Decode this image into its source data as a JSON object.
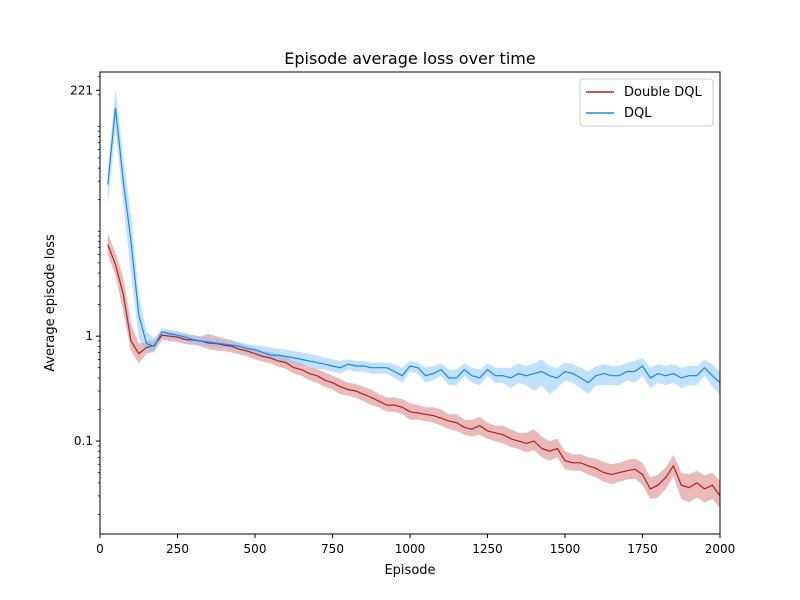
{
  "chart_data": {
    "type": "line",
    "title": "Episode average loss over time",
    "xlabel": "Episode",
    "ylabel": "Average episode loss",
    "xlim": [
      0,
      2000
    ],
    "ylim": [
      0.013,
      330
    ],
    "yscale": "log",
    "xticks": [
      0,
      250,
      500,
      750,
      1000,
      1250,
      1500,
      1750,
      2000
    ],
    "yticks": [
      0.1,
      1,
      221
    ],
    "ytick_labels": [
      "0.1",
      "1",
      "221"
    ],
    "grid": false,
    "legend_position": "top-right",
    "x": [
      25,
      50,
      75,
      100,
      125,
      150,
      175,
      200,
      225,
      250,
      275,
      300,
      325,
      350,
      375,
      400,
      425,
      450,
      475,
      500,
      525,
      550,
      575,
      600,
      625,
      650,
      675,
      700,
      725,
      750,
      775,
      800,
      825,
      850,
      875,
      900,
      925,
      950,
      975,
      1000,
      1025,
      1050,
      1075,
      1100,
      1125,
      1150,
      1175,
      1200,
      1225,
      1250,
      1275,
      1300,
      1325,
      1350,
      1375,
      1400,
      1425,
      1450,
      1475,
      1500,
      1525,
      1550,
      1575,
      1600,
      1625,
      1650,
      1675,
      1700,
      1725,
      1750,
      1775,
      1800,
      1825,
      1850,
      1875,
      1900,
      1925,
      1950,
      1975,
      2000
    ],
    "series": [
      {
        "name": "Double DQL",
        "color": "#b22222",
        "band_color": "#d98080",
        "values": [
          7.5,
          4.8,
          2.5,
          0.9,
          0.68,
          0.78,
          0.82,
          1.02,
          1.0,
          0.98,
          0.93,
          0.92,
          0.9,
          0.86,
          0.85,
          0.82,
          0.8,
          0.75,
          0.72,
          0.68,
          0.64,
          0.62,
          0.58,
          0.56,
          0.5,
          0.48,
          0.44,
          0.42,
          0.38,
          0.36,
          0.33,
          0.31,
          0.3,
          0.28,
          0.26,
          0.24,
          0.22,
          0.22,
          0.21,
          0.19,
          0.185,
          0.18,
          0.175,
          0.165,
          0.155,
          0.15,
          0.135,
          0.13,
          0.14,
          0.125,
          0.12,
          0.115,
          0.105,
          0.1,
          0.095,
          0.1,
          0.085,
          0.08,
          0.085,
          0.065,
          0.062,
          0.062,
          0.058,
          0.055,
          0.05,
          0.048,
          0.05,
          0.052,
          0.054,
          0.048,
          0.035,
          0.038,
          0.045,
          0.058,
          0.038,
          0.036,
          0.04,
          0.035,
          0.038,
          0.03
        ],
        "upper": [
          9.5,
          6.2,
          3.6,
          1.3,
          0.85,
          0.9,
          0.92,
          1.12,
          1.1,
          1.08,
          1.03,
          1.02,
          1.0,
          1.05,
          1.0,
          0.95,
          0.92,
          0.85,
          0.81,
          0.77,
          0.72,
          0.7,
          0.66,
          0.64,
          0.58,
          0.55,
          0.51,
          0.49,
          0.45,
          0.42,
          0.39,
          0.36,
          0.35,
          0.33,
          0.31,
          0.28,
          0.26,
          0.26,
          0.25,
          0.23,
          0.22,
          0.21,
          0.21,
          0.2,
          0.18,
          0.18,
          0.16,
          0.16,
          0.17,
          0.15,
          0.14,
          0.14,
          0.13,
          0.12,
          0.12,
          0.13,
          0.11,
          0.1,
          0.105,
          0.08,
          0.075,
          0.075,
          0.07,
          0.068,
          0.063,
          0.06,
          0.062,
          0.066,
          0.068,
          0.062,
          0.045,
          0.048,
          0.056,
          0.074,
          0.05,
          0.048,
          0.052,
          0.047,
          0.05,
          0.042
        ],
        "lower": [
          6.0,
          3.8,
          1.7,
          0.72,
          0.55,
          0.68,
          0.72,
          0.92,
          0.9,
          0.88,
          0.84,
          0.83,
          0.8,
          0.75,
          0.73,
          0.72,
          0.7,
          0.67,
          0.64,
          0.6,
          0.57,
          0.55,
          0.51,
          0.49,
          0.44,
          0.42,
          0.38,
          0.36,
          0.33,
          0.31,
          0.28,
          0.27,
          0.26,
          0.24,
          0.22,
          0.21,
          0.19,
          0.19,
          0.18,
          0.16,
          0.16,
          0.155,
          0.15,
          0.14,
          0.13,
          0.125,
          0.115,
          0.11,
          0.115,
          0.105,
          0.1,
          0.095,
          0.088,
          0.084,
          0.078,
          0.082,
          0.07,
          0.065,
          0.07,
          0.054,
          0.052,
          0.052,
          0.048,
          0.045,
          0.041,
          0.039,
          0.041,
          0.043,
          0.044,
          0.038,
          0.028,
          0.029,
          0.035,
          0.046,
          0.028,
          0.026,
          0.029,
          0.026,
          0.028,
          0.023
        ]
      },
      {
        "name": "DQL",
        "color": "#1e88e5",
        "band_color": "#8cc8ff",
        "values": [
          28,
          150,
          30,
          8,
          1.6,
          0.85,
          0.8,
          1.1,
          1.05,
          1.02,
          0.98,
          0.93,
          0.9,
          0.88,
          0.86,
          0.84,
          0.82,
          0.8,
          0.76,
          0.74,
          0.7,
          0.66,
          0.66,
          0.64,
          0.62,
          0.6,
          0.58,
          0.56,
          0.54,
          0.52,
          0.5,
          0.54,
          0.52,
          0.52,
          0.5,
          0.5,
          0.5,
          0.46,
          0.42,
          0.52,
          0.5,
          0.42,
          0.44,
          0.48,
          0.4,
          0.4,
          0.48,
          0.42,
          0.4,
          0.48,
          0.42,
          0.42,
          0.4,
          0.44,
          0.42,
          0.44,
          0.46,
          0.42,
          0.4,
          0.46,
          0.44,
          0.4,
          0.36,
          0.42,
          0.44,
          0.42,
          0.42,
          0.46,
          0.46,
          0.52,
          0.4,
          0.44,
          0.42,
          0.44,
          0.4,
          0.42,
          0.42,
          0.5,
          0.42,
          0.36
        ],
        "upper": [
          40,
          230,
          50,
          14,
          2.5,
          1.1,
          0.95,
          1.2,
          1.15,
          1.12,
          1.08,
          1.02,
          0.98,
          0.96,
          0.93,
          0.91,
          0.89,
          0.88,
          0.84,
          0.82,
          0.8,
          0.78,
          0.76,
          0.74,
          0.72,
          0.7,
          0.68,
          0.66,
          0.62,
          0.6,
          0.58,
          0.6,
          0.58,
          0.58,
          0.56,
          0.56,
          0.56,
          0.54,
          0.5,
          0.58,
          0.56,
          0.5,
          0.52,
          0.55,
          0.48,
          0.48,
          0.55,
          0.5,
          0.48,
          0.55,
          0.5,
          0.5,
          0.5,
          0.55,
          0.52,
          0.55,
          0.6,
          0.52,
          0.5,
          0.56,
          0.54,
          0.5,
          0.46,
          0.52,
          0.54,
          0.52,
          0.52,
          0.56,
          0.58,
          0.62,
          0.5,
          0.54,
          0.52,
          0.54,
          0.5,
          0.52,
          0.52,
          0.6,
          0.54,
          0.46
        ],
        "lower": [
          18,
          95,
          18,
          4,
          0.95,
          0.7,
          0.7,
          1.0,
          0.95,
          0.93,
          0.9,
          0.85,
          0.82,
          0.8,
          0.79,
          0.77,
          0.75,
          0.73,
          0.69,
          0.67,
          0.63,
          0.59,
          0.59,
          0.57,
          0.55,
          0.53,
          0.51,
          0.49,
          0.48,
          0.46,
          0.44,
          0.48,
          0.46,
          0.46,
          0.44,
          0.44,
          0.44,
          0.4,
          0.36,
          0.46,
          0.44,
          0.36,
          0.38,
          0.42,
          0.34,
          0.34,
          0.42,
          0.36,
          0.34,
          0.42,
          0.36,
          0.36,
          0.32,
          0.36,
          0.34,
          0.3,
          0.34,
          0.28,
          0.32,
          0.38,
          0.36,
          0.32,
          0.28,
          0.34,
          0.34,
          0.34,
          0.34,
          0.38,
          0.36,
          0.42,
          0.32,
          0.36,
          0.34,
          0.36,
          0.32,
          0.34,
          0.34,
          0.42,
          0.33,
          0.28
        ]
      }
    ]
  }
}
